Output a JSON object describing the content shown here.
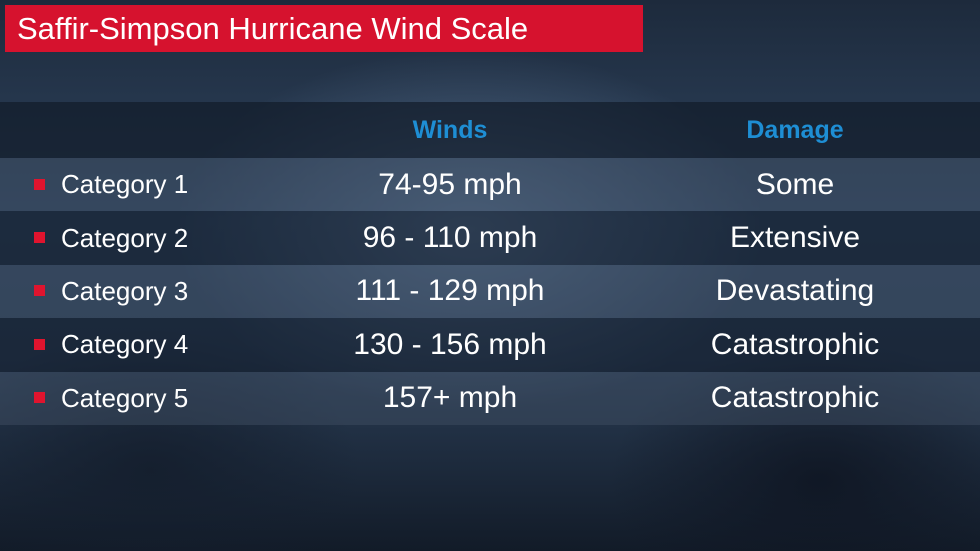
{
  "title": "Saffir-Simpson Hurricane Wind Scale",
  "table": {
    "header": [
      "Winds",
      "Damage"
    ],
    "rows": [
      [
        "Category 1",
        "74-95 mph",
        "Some"
      ],
      [
        "Category 2",
        "96 - 110 mph",
        "Extensive"
      ],
      [
        "Category 3",
        "111 - 129 mph",
        "Devastating"
      ],
      [
        "Category 4",
        "130 - 156 mph",
        "Catastrophic"
      ],
      [
        "Category 5",
        "157+ mph",
        "Catastrophic"
      ]
    ]
  }
}
